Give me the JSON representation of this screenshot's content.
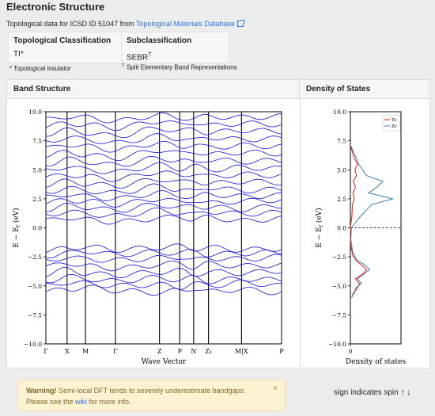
{
  "header": {
    "title": "Electronic Structure",
    "prefix": "Topological data for ICSD ID 51047 from ",
    "db_link": "Topological Materials Database"
  },
  "classification": {
    "col1_header": "Topological Classification",
    "col1_value": "TI*",
    "col2_header": "Subclassification",
    "col2_value": "SEBR",
    "col2_mark": "†"
  },
  "footnotes": {
    "ti": "* Topological insulator",
    "sebr_mark": "†",
    "sebr": "Split Elementary Band Representations"
  },
  "panels": {
    "band": "Band Structure",
    "dos": "Density of States"
  },
  "chart_data": [
    {
      "type": "line",
      "title": "Band Structure",
      "xlabel": "Wave Vector",
      "ylabel": "E − E_f (eV)",
      "ylim": [
        -10,
        10
      ],
      "yticks": [
        "10.0",
        "7.5",
        "5.0",
        "2.5",
        "0.0",
        "−2.5",
        "−5.0",
        "−7.5",
        "−10.0"
      ],
      "kpoints": [
        "Γ",
        "X",
        "M",
        "Γ",
        "Z",
        "P",
        "N",
        "Z₁",
        "M|X",
        "P"
      ],
      "kpoint_positions": [
        0,
        0.09,
        0.168,
        0.295,
        0.482,
        0.568,
        0.627,
        0.69,
        0.83,
        1.0
      ],
      "series_color": "#1f1fd6",
      "series": [
        {
          "values": [
            -5.5,
            -5.3,
            -5.1,
            -5.4,
            -5.6,
            -5.4,
            -5.2,
            -5.5,
            -5.3,
            -5.6
          ]
        },
        {
          "values": [
            -5.0,
            -4.7,
            -4.8,
            -5.0,
            -4.9,
            -5.1,
            -4.8,
            -5.0,
            -4.7,
            -5.0
          ]
        },
        {
          "values": [
            -4.6,
            -4.2,
            -4.4,
            -4.6,
            -4.3,
            -4.5,
            -4.3,
            -4.6,
            -4.4,
            -4.5
          ]
        },
        {
          "values": [
            -4.0,
            -3.6,
            -3.9,
            -4.1,
            -3.8,
            -3.7,
            -4.0,
            -3.8,
            -3.9,
            -3.7
          ]
        },
        {
          "values": [
            -3.4,
            -3.0,
            -3.3,
            -3.5,
            -3.2,
            -3.0,
            -3.4,
            -3.1,
            -3.3,
            -3.2
          ]
        },
        {
          "values": [
            -2.9,
            -2.5,
            -2.7,
            -2.8,
            -2.6,
            -2.5,
            -2.8,
            -2.6,
            -2.7,
            -2.5
          ]
        },
        {
          "values": [
            -2.4,
            -2.2,
            -2.0,
            -2.3,
            -2.1,
            -2.2,
            -2.0,
            -2.3,
            -2.2,
            -2.1
          ]
        },
        {
          "values": [
            -2.0,
            -1.8,
            -1.6,
            -1.9,
            -1.7,
            -1.6,
            -1.8,
            -1.7,
            -1.9,
            -1.8
          ]
        },
        {
          "values": [
            0.6,
            0.9,
            0.7,
            0.5,
            0.8,
            1.0,
            0.7,
            0.9,
            0.6,
            0.8
          ]
        },
        {
          "values": [
            1.1,
            1.4,
            1.2,
            1.0,
            1.5,
            1.3,
            1.1,
            1.4,
            1.2,
            1.3
          ]
        },
        {
          "values": [
            1.6,
            1.9,
            1.8,
            1.5,
            2.0,
            1.7,
            1.9,
            1.8,
            1.6,
            1.9
          ]
        },
        {
          "values": [
            2.1,
            2.4,
            2.3,
            2.0,
            2.5,
            2.2,
            2.4,
            2.1,
            2.3,
            2.4
          ]
        },
        {
          "values": [
            2.6,
            2.9,
            2.7,
            2.5,
            3.0,
            2.8,
            2.6,
            2.9,
            2.7,
            2.8
          ]
        },
        {
          "values": [
            3.1,
            3.4,
            3.2,
            3.0,
            3.6,
            3.3,
            3.1,
            3.5,
            3.2,
            3.3
          ]
        },
        {
          "values": [
            3.7,
            4.0,
            3.8,
            3.6,
            4.2,
            3.9,
            4.1,
            3.8,
            4.0,
            3.9
          ]
        },
        {
          "values": [
            4.3,
            4.6,
            4.4,
            4.2,
            4.8,
            4.5,
            4.7,
            4.4,
            4.6,
            4.5
          ]
        },
        {
          "values": [
            4.9,
            5.3,
            5.0,
            4.8,
            5.4,
            5.1,
            5.3,
            5.0,
            5.2,
            5.1
          ]
        },
        {
          "values": [
            5.5,
            5.9,
            5.7,
            5.4,
            6.0,
            5.8,
            5.6,
            5.9,
            5.7,
            5.8
          ]
        },
        {
          "values": [
            6.2,
            6.5,
            6.3,
            6.0,
            6.7,
            6.4,
            6.6,
            6.3,
            6.5,
            6.4
          ]
        },
        {
          "values": [
            6.8,
            7.2,
            7.0,
            6.7,
            7.3,
            7.0,
            7.2,
            6.9,
            7.1,
            7.0
          ]
        },
        {
          "values": [
            7.4,
            7.8,
            7.6,
            7.3,
            7.9,
            7.7,
            7.5,
            7.8,
            7.6,
            7.7
          ]
        },
        {
          "values": [
            8.1,
            8.4,
            8.2,
            7.9,
            8.6,
            8.3,
            8.5,
            8.2,
            8.4,
            8.3
          ]
        },
        {
          "values": [
            8.7,
            9.0,
            8.9,
            8.6,
            9.2,
            8.9,
            9.1,
            8.8,
            9.0,
            8.9
          ]
        },
        {
          "values": [
            9.3,
            9.6,
            9.5,
            9.2,
            9.7,
            9.5,
            9.4,
            9.6,
            9.5,
            9.6
          ]
        }
      ]
    },
    {
      "type": "line",
      "title": "Density of States",
      "xlabel": "Density of states",
      "ylabel": "E − E_f (eV)",
      "ylim": [
        -10,
        10
      ],
      "yticks": [
        "10.0",
        "7.5",
        "5.0",
        "2.5",
        "0.0",
        "−2.5",
        "−5.0",
        "−7.5",
        "−10.0"
      ],
      "xticks": [
        "0"
      ],
      "xlim": [
        0,
        10
      ],
      "legend": "top-right",
      "fermi_line": 0.0,
      "series": [
        {
          "name": "Te",
          "color": "#e31a1c",
          "energy": [
            -6.0,
            -5.6,
            -5.2,
            -4.8,
            -4.4,
            -4.0,
            -3.6,
            -3.2,
            -2.8,
            -2.4,
            -2.0,
            -1.6,
            -1.0,
            0.0,
            1.0,
            2.0,
            2.5,
            3.0,
            3.5,
            4.0,
            4.5,
            5.0,
            5.5,
            6.0,
            6.5,
            7.0
          ],
          "values": [
            0.3,
            0.6,
            1.4,
            1.8,
            1.0,
            2.4,
            3.2,
            2.2,
            1.1,
            0.5,
            0.3,
            0.1,
            0,
            0,
            0.3,
            0.4,
            0.8,
            0.5,
            1.0,
            0.6,
            1.2,
            0.9,
            1.4,
            0.8,
            0.4,
            0.1
          ]
        },
        {
          "name": "Zr",
          "color": "#3b7fa8",
          "energy": [
            -6.0,
            -5.6,
            -5.2,
            -4.8,
            -4.4,
            -4.0,
            -3.6,
            -3.2,
            -2.8,
            -2.4,
            -2.0,
            -1.6,
            -1.0,
            0.0,
            1.0,
            2.0,
            2.5,
            3.0,
            3.5,
            4.0,
            4.5,
            5.0,
            5.5,
            6.0,
            6.5,
            7.0
          ],
          "values": [
            0.2,
            0.8,
            1.0,
            2.2,
            1.4,
            2.6,
            3.8,
            2.9,
            1.4,
            0.8,
            0.4,
            0.3,
            0.1,
            0.2,
            2.0,
            4.2,
            8.4,
            3.6,
            5.2,
            6.4,
            3.2,
            2.4,
            1.6,
            1.2,
            0.6,
            0.2
          ]
        }
      ]
    }
  ],
  "warning": {
    "strong": "Warning!",
    "text": " Semi-local DFT tends to severely underestimate bandgaps.",
    "line2_pre": "Please see the ",
    "link": "wiki",
    "line2_post": " for more info.",
    "close": "×"
  },
  "spin_note": "sign indicates spin ↑ ↓"
}
